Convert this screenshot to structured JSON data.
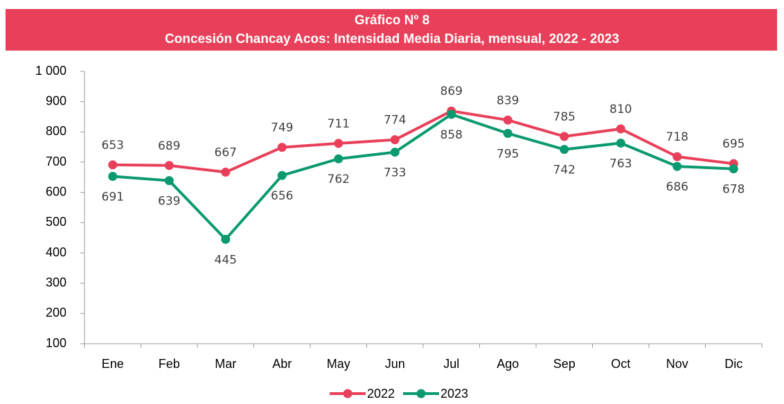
{
  "chart_data": {
    "type": "line",
    "title": "Gráfico Nº  8",
    "subtitle": "Concesión Chancay Acos: Intensidad Media Diaria, mensual, 2022 - 2023",
    "categories": [
      "Ene",
      "Feb",
      "Mar",
      "Abr",
      "May",
      "Jun",
      "Jul",
      "Ago",
      "Sep",
      "Oct",
      "Nov",
      "Dic"
    ],
    "series": [
      {
        "name": "2022",
        "color": "#e8405a",
        "values": [
          691,
          689,
          667,
          749,
          762,
          774,
          869,
          839,
          785,
          810,
          718,
          695
        ]
      },
      {
        "name": "2023",
        "color": "#0b9a70",
        "values": [
          653,
          639,
          445,
          656,
          711,
          733,
          858,
          795,
          742,
          763,
          686,
          678
        ]
      }
    ],
    "ylim": [
      100,
      1000
    ],
    "yticks": [
      100,
      200,
      300,
      400,
      500,
      600,
      700,
      800,
      900,
      {
        "value": 1000,
        "label": "1 000"
      }
    ],
    "grid": false,
    "legend": "bottom"
  }
}
